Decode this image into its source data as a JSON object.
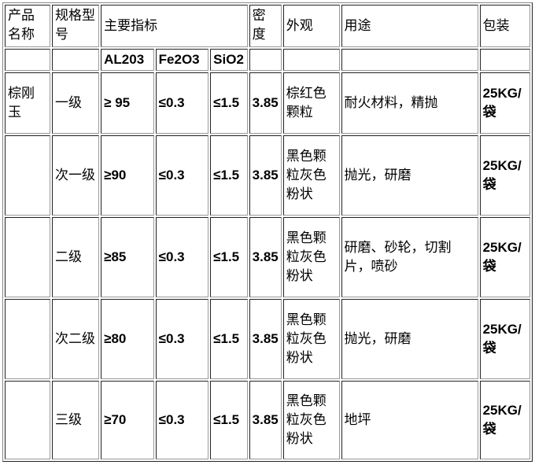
{
  "header": {
    "name": "产品名称",
    "spec": "规格型号",
    "indicators": "主要指标",
    "density": "密度",
    "appearance": "外观",
    "usage": "用途",
    "packing": "包装"
  },
  "subheader": {
    "al": "AL203",
    "fe": "Fe2O3",
    "si": "SiO2"
  },
  "product": "棕刚玉",
  "rows": [
    {
      "grade": "一级",
      "al": "≥ 95",
      "fe": "≤0.3",
      "si": "≤1.5",
      "density": "3.85",
      "appearance": "棕红色颗粒",
      "usage": "耐火材料，精抛",
      "packing": "25KG/袋"
    },
    {
      "grade": "次一级",
      "al": "≥90",
      "fe": "≤0.3",
      "si": "≤1.5",
      "density": "3.85",
      "appearance": "黑色颗粒灰色粉状",
      "usage": "抛光，研磨",
      "packing": "25KG/袋"
    },
    {
      "grade": "二级",
      "al": "≥85",
      "fe": "≤0.3",
      "si": "≤1.5",
      "density": "3.85",
      "appearance": "黑色颗粒灰色粉状",
      "usage": "研磨、砂轮，切割片，喷砂",
      "packing": "25KG/袋"
    },
    {
      "grade": "次二级",
      "al": "≥80",
      "fe": "≤0.3",
      "si": "≤1.5",
      "density": "3.85",
      "appearance": "黑色颗粒灰色粉状",
      "usage": "抛光，研磨",
      "packing": "25KG/袋"
    },
    {
      "grade": "三级",
      "al": "≥70",
      "fe": "≤0.3",
      "si": "≤1.5",
      "density": "3.85",
      "appearance": "黑色颗粒灰色粉状",
      "usage": "地坪",
      "packing": "25KG/袋"
    }
  ]
}
